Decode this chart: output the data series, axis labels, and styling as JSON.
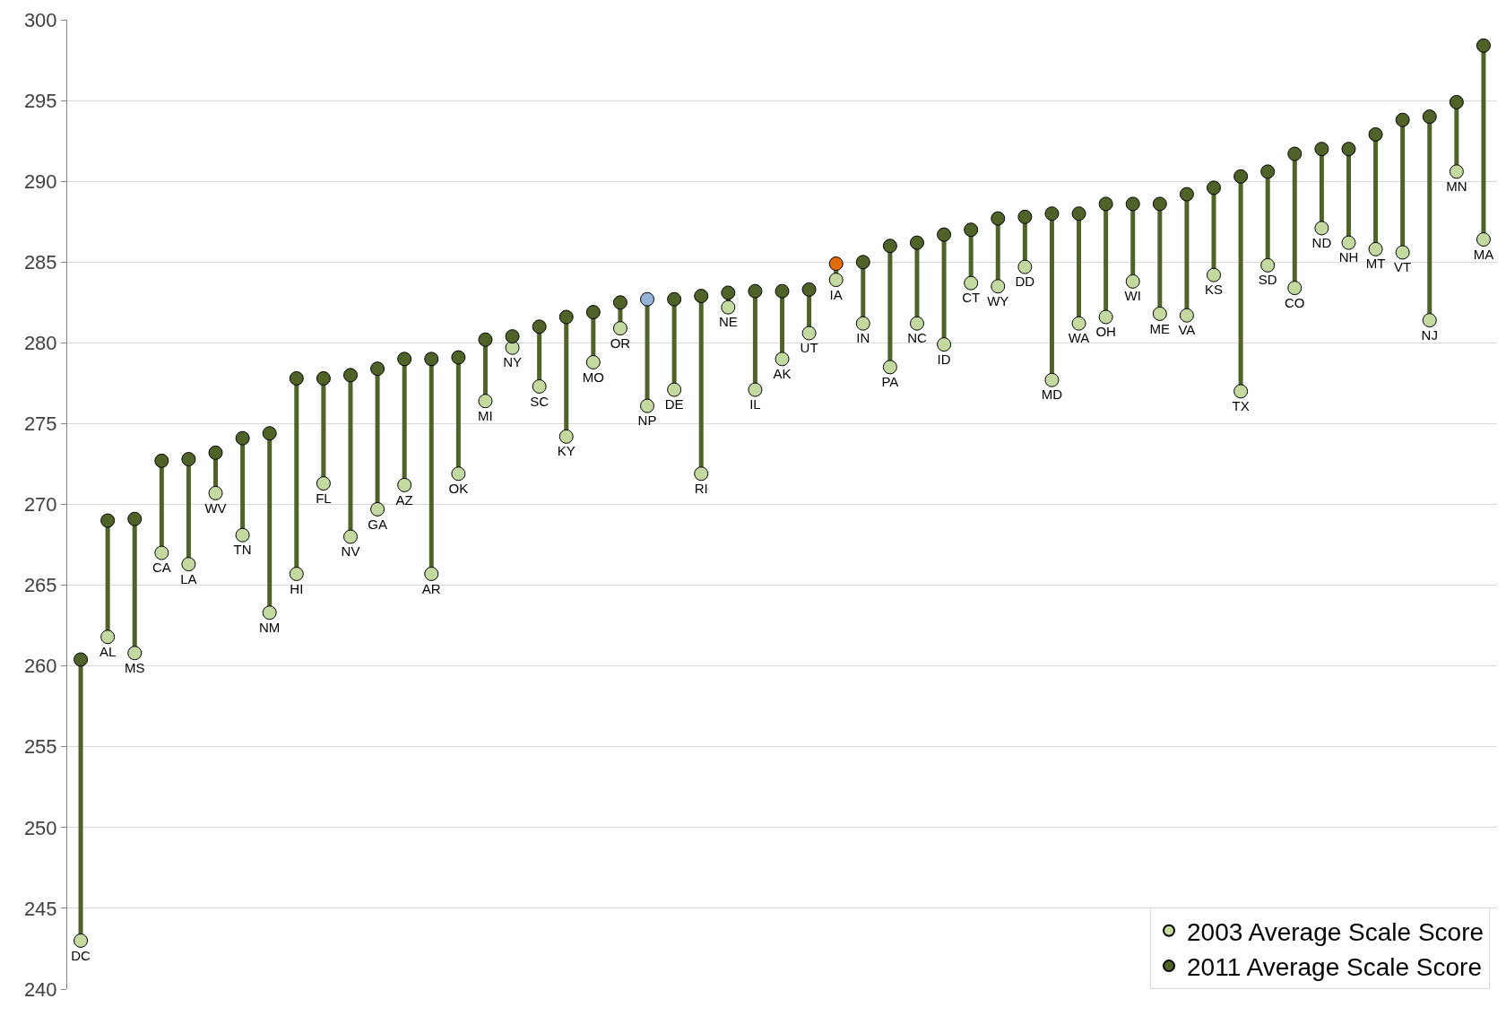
{
  "chart_data": {
    "type": "scatter",
    "categories": [
      "DC",
      "AL",
      "MS",
      "CA",
      "LA",
      "WV",
      "TN",
      "NM",
      "HI",
      "FL",
      "NV",
      "GA",
      "AZ",
      "AR",
      "OK",
      "MI",
      "NY",
      "SC",
      "KY",
      "MO",
      "OR",
      "NP",
      "DE",
      "RI",
      "NE",
      "IL",
      "AK",
      "UT",
      "IA",
      "IN",
      "PA",
      "NC",
      "ID",
      "CT",
      "WY",
      "DD",
      "MD",
      "WA",
      "OH",
      "WI",
      "ME",
      "VA",
      "KS",
      "TX",
      "SD",
      "CO",
      "ND",
      "NH",
      "MT",
      "VT",
      "NJ",
      "MN",
      "MA"
    ],
    "series": [
      {
        "name": "2003 Average Scale Score",
        "color": "#c4d9a0",
        "values": [
          243.0,
          261.8,
          260.8,
          267.0,
          266.3,
          270.7,
          268.1,
          263.3,
          265.7,
          271.3,
          268.0,
          269.7,
          271.2,
          265.7,
          271.9,
          276.4,
          279.7,
          277.3,
          274.2,
          278.8,
          280.9,
          276.1,
          277.1,
          271.9,
          282.2,
          277.1,
          279.0,
          280.6,
          283.9,
          281.2,
          278.5,
          281.2,
          279.9,
          283.7,
          283.5,
          284.7,
          277.7,
          281.2,
          281.6,
          283.8,
          281.8,
          281.7,
          284.2,
          277.0,
          284.8,
          283.4,
          287.1,
          286.2,
          285.8,
          285.6,
          281.4,
          290.6,
          286.4
        ]
      },
      {
        "name": "2011 Average Scale Score",
        "color": "#4f6228",
        "colors": [
          "#4f6228",
          "#4f6228",
          "#4f6228",
          "#4f6228",
          "#4f6228",
          "#4f6228",
          "#4f6228",
          "#4f6228",
          "#4f6228",
          "#4f6228",
          "#4f6228",
          "#4f6228",
          "#4f6228",
          "#4f6228",
          "#4f6228",
          "#4f6228",
          "#4f6228",
          "#4f6228",
          "#4f6228",
          "#4f6228",
          "#4f6228",
          "#95b3d7",
          "#4f6228",
          "#4f6228",
          "#4f6228",
          "#4f6228",
          "#4f6228",
          "#4f6228",
          "#e36c0a",
          "#4f6228",
          "#4f6228",
          "#4f6228",
          "#4f6228",
          "#4f6228",
          "#4f6228",
          "#4f6228",
          "#4f6228",
          "#4f6228",
          "#4f6228",
          "#4f6228",
          "#4f6228",
          "#4f6228",
          "#4f6228",
          "#4f6228",
          "#4f6228",
          "#4f6228",
          "#4f6228",
          "#4f6228",
          "#4f6228",
          "#4f6228",
          "#4f6228",
          "#4f6228",
          "#4f6228"
        ],
        "values": [
          260.4,
          269.0,
          269.1,
          272.7,
          272.8,
          273.2,
          274.1,
          274.4,
          277.8,
          277.8,
          278.0,
          278.4,
          279.0,
          279.0,
          279.1,
          280.2,
          280.4,
          281.0,
          281.6,
          281.9,
          282.5,
          282.7,
          282.7,
          282.9,
          283.1,
          283.2,
          283.2,
          283.3,
          284.9,
          285.0,
          286.0,
          286.2,
          286.7,
          287.0,
          287.7,
          287.8,
          288.0,
          288.0,
          288.6,
          288.6,
          288.6,
          289.2,
          289.6,
          290.3,
          290.6,
          291.7,
          292.0,
          292.0,
          292.9,
          293.8,
          294.0,
          294.9,
          298.4
        ]
      }
    ],
    "ylim": [
      240,
      300
    ],
    "yticks": [
      240,
      245,
      250,
      255,
      260,
      265,
      270,
      275,
      280,
      285,
      290,
      295,
      300
    ],
    "grid": "y",
    "legend": "bottom right",
    "marker": "circle",
    "tick_labels": "y"
  }
}
